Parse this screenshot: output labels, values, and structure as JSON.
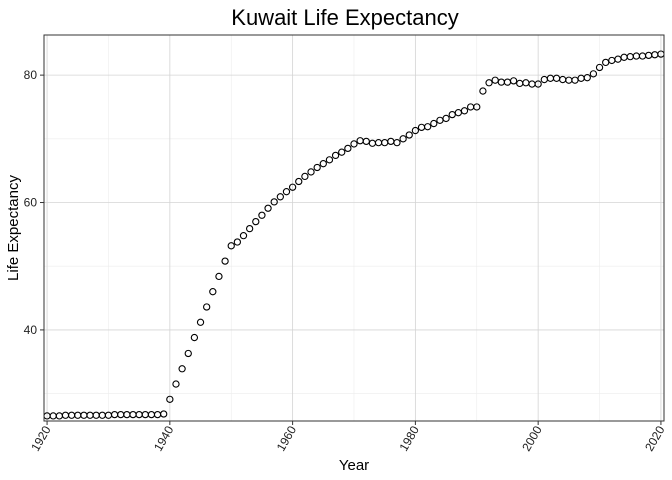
{
  "chart_data": {
    "type": "scatter",
    "title": "Kuwait Life Expectancy",
    "xlabel": "Year",
    "ylabel": "Life Expectancy",
    "xlim": [
      1919.5,
      2020.5
    ],
    "ylim": [
      25.7,
      86.3
    ],
    "x_ticks": [
      1920,
      1940,
      1960,
      1980,
      2000,
      2020
    ],
    "x_tick_labels": [
      "1920",
      "1940",
      "1960",
      "1980",
      "2000",
      "2020"
    ],
    "y_ticks": [
      40,
      60,
      80
    ],
    "y_tick_labels": [
      "40",
      "60",
      "80"
    ],
    "grid": true,
    "legend": "none",
    "marker": "open-circle",
    "x": [
      1920,
      1921,
      1922,
      1923,
      1924,
      1925,
      1926,
      1927,
      1928,
      1929,
      1930,
      1931,
      1932,
      1933,
      1934,
      1935,
      1936,
      1937,
      1938,
      1939,
      1940,
      1941,
      1942,
      1943,
      1944,
      1945,
      1946,
      1947,
      1948,
      1949,
      1950,
      1951,
      1952,
      1953,
      1954,
      1955,
      1956,
      1957,
      1958,
      1959,
      1960,
      1961,
      1962,
      1963,
      1964,
      1965,
      1966,
      1967,
      1968,
      1969,
      1970,
      1971,
      1972,
      1973,
      1974,
      1975,
      1976,
      1977,
      1978,
      1979,
      1980,
      1981,
      1982,
      1983,
      1984,
      1985,
      1986,
      1987,
      1988,
      1989,
      1990,
      1991,
      1992,
      1993,
      1994,
      1995,
      1996,
      1997,
      1998,
      1999,
      2000,
      2001,
      2002,
      2003,
      2004,
      2005,
      2006,
      2007,
      2008,
      2009,
      2010,
      2011,
      2012,
      2013,
      2014,
      2015,
      2016,
      2017,
      2018,
      2019,
      2020
    ],
    "y": [
      26.5,
      26.5,
      26.5,
      26.6,
      26.6,
      26.6,
      26.6,
      26.6,
      26.6,
      26.6,
      26.6,
      26.7,
      26.7,
      26.7,
      26.7,
      26.7,
      26.7,
      26.7,
      26.7,
      26.8,
      29.1,
      31.5,
      33.9,
      36.3,
      38.8,
      41.2,
      43.6,
      46.0,
      48.4,
      50.8,
      53.2,
      53.8,
      54.8,
      55.9,
      57.0,
      58.0,
      59.1,
      60.1,
      60.9,
      61.7,
      62.4,
      63.3,
      64.1,
      64.8,
      65.5,
      66.1,
      66.7,
      67.4,
      67.9,
      68.5,
      69.2,
      69.7,
      69.6,
      69.3,
      69.4,
      69.4,
      69.6,
      69.4,
      70.0,
      70.6,
      71.3,
      71.8,
      71.9,
      72.4,
      72.9,
      73.2,
      73.8,
      74.1,
      74.4,
      75.0,
      75.0,
      77.5,
      78.8,
      79.2,
      78.9,
      78.9,
      79.1,
      78.7,
      78.8,
      78.6,
      78.6,
      79.3,
      79.5,
      79.5,
      79.3,
      79.2,
      79.2,
      79.5,
      79.6,
      80.2,
      81.2,
      82.0,
      82.3,
      82.5,
      82.8,
      82.9,
      83.0,
      83.0,
      83.1,
      83.2,
      83.3
    ]
  }
}
